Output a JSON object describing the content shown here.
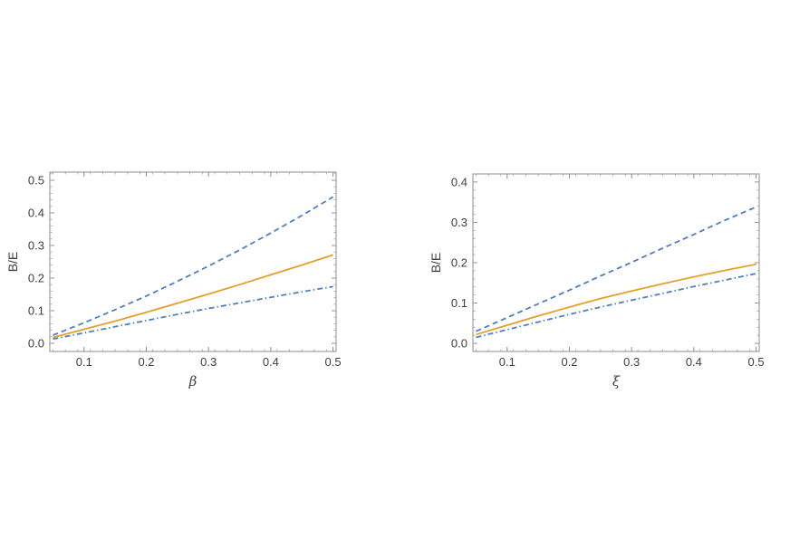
{
  "chart_data": [
    {
      "type": "line",
      "xlabel": "β",
      "ylabel": "B/E",
      "xlim": [
        0.045,
        0.505
      ],
      "ylim": [
        -0.025,
        0.525
      ],
      "xticks": [
        "0.1",
        "0.2",
        "0.3",
        "0.4",
        "0.5"
      ],
      "yticks": [
        "0.0",
        "0.1",
        "0.2",
        "0.3",
        "0.4",
        "0.5"
      ],
      "x": [
        0.05,
        0.1,
        0.15,
        0.2,
        0.25,
        0.3,
        0.35,
        0.4,
        0.45,
        0.5
      ],
      "series": [
        {
          "style": "dashed",
          "color": "#4e7fc6",
          "values": [
            0.025,
            0.063,
            0.103,
            0.145,
            0.19,
            0.237,
            0.286,
            0.338,
            0.392,
            0.449
          ]
        },
        {
          "style": "solid",
          "color": "#e5a02a",
          "values": [
            0.018,
            0.043,
            0.068,
            0.095,
            0.123,
            0.151,
            0.18,
            0.21,
            0.24,
            0.271
          ]
        },
        {
          "style": "dashdot",
          "color": "#4e7fc6",
          "values": [
            0.013,
            0.032,
            0.051,
            0.07,
            0.089,
            0.107,
            0.124,
            0.141,
            0.158,
            0.174
          ]
        }
      ]
    },
    {
      "type": "line",
      "xlabel": "ξ",
      "ylabel": "B/E",
      "xlim": [
        0.045,
        0.505
      ],
      "ylim": [
        -0.02,
        0.42
      ],
      "xticks": [
        "0.1",
        "0.2",
        "0.3",
        "0.4",
        "0.5"
      ],
      "yticks": [
        "0.0",
        "0.1",
        "0.2",
        "0.3",
        "0.4"
      ],
      "x": [
        0.05,
        0.1,
        0.15,
        0.2,
        0.25,
        0.3,
        0.35,
        0.4,
        0.45,
        0.5
      ],
      "series": [
        {
          "style": "dashed",
          "color": "#4e7fc6",
          "values": [
            0.03,
            0.064,
            0.098,
            0.132,
            0.167,
            0.201,
            0.236,
            0.27,
            0.305,
            0.338
          ]
        },
        {
          "style": "solid",
          "color": "#e5a02a",
          "values": [
            0.022,
            0.045,
            0.068,
            0.09,
            0.111,
            0.13,
            0.148,
            0.165,
            0.181,
            0.196
          ]
        },
        {
          "style": "dashdot",
          "color": "#4e7fc6",
          "values": [
            0.015,
            0.034,
            0.053,
            0.072,
            0.09,
            0.107,
            0.124,
            0.141,
            0.157,
            0.173
          ]
        }
      ]
    }
  ]
}
